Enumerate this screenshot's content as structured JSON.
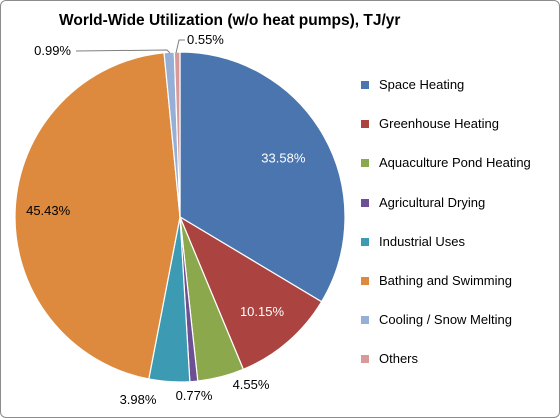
{
  "chart_data": {
    "type": "pie",
    "title": "World-Wide Utilization (w/o heat pumps), TJ/yr",
    "legend_position": "right",
    "slices": [
      {
        "label": "Space Heating",
        "value": 33.58,
        "display": "33.58%",
        "color": "#4a75ae"
      },
      {
        "label": "Greenhouse Heating",
        "value": 10.15,
        "display": "10.15%",
        "color": "#ab4340"
      },
      {
        "label": "Aquaculture Pond Heating",
        "value": 4.55,
        "display": "4.55%",
        "color": "#8ba84c"
      },
      {
        "label": "Agricultural Drying",
        "value": 0.77,
        "display": "0.77%",
        "color": "#6d4f93"
      },
      {
        "label": "Industrial Uses",
        "value": 3.98,
        "display": "3.98%",
        "color": "#3c9ab3"
      },
      {
        "label": "Bathing and Swimming",
        "value": 45.43,
        "display": "45.43%",
        "color": "#dd8a3e"
      },
      {
        "label": "Cooling / Snow Melting",
        "value": 0.99,
        "display": "0.99%",
        "color": "#96afd6"
      },
      {
        "label": "Others",
        "value": 0.55,
        "display": "0.55%",
        "color": "#d79a99"
      }
    ]
  }
}
